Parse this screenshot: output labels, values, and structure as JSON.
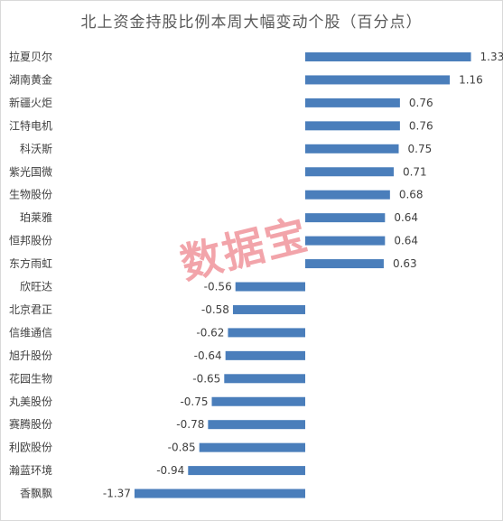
{
  "chart_data": {
    "type": "bar",
    "orientation": "horizontal",
    "title": "北上资金持股比例本周大幅变动个股（百分点）",
    "categories": [
      "拉夏贝尔",
      "湖南黄金",
      "新疆火炬",
      "江特电机",
      "科沃斯",
      "紫光国微",
      "生物股份",
      "珀莱雅",
      "恒邦股份",
      "东方雨虹",
      "欣旺达",
      "北京君正",
      "信维通信",
      "旭升股份",
      "花园生物",
      "丸美股份",
      "赛腾股份",
      "利欧股份",
      "瀚蓝环境",
      "香飘飘"
    ],
    "values": [
      1.33,
      1.16,
      0.76,
      0.76,
      0.75,
      0.71,
      0.68,
      0.64,
      0.64,
      0.63,
      -0.56,
      -0.58,
      -0.62,
      -0.64,
      -0.65,
      -0.75,
      -0.78,
      -0.85,
      -0.94,
      -1.37
    ],
    "value_labels": [
      "1.33",
      "1.16",
      "0.76",
      "0.76",
      "0.75",
      "0.71",
      "0.68",
      "0.64",
      "0.64",
      "0.63",
      "-0.56",
      "-0.58",
      "-0.62",
      "-0.64",
      "-0.65",
      "-0.75",
      "-0.78",
      "-0.85",
      "-0.94",
      "-1.37"
    ],
    "bar_color": "#4a7ebb",
    "grid": false,
    "legend": "none"
  },
  "watermark": "数据宝"
}
